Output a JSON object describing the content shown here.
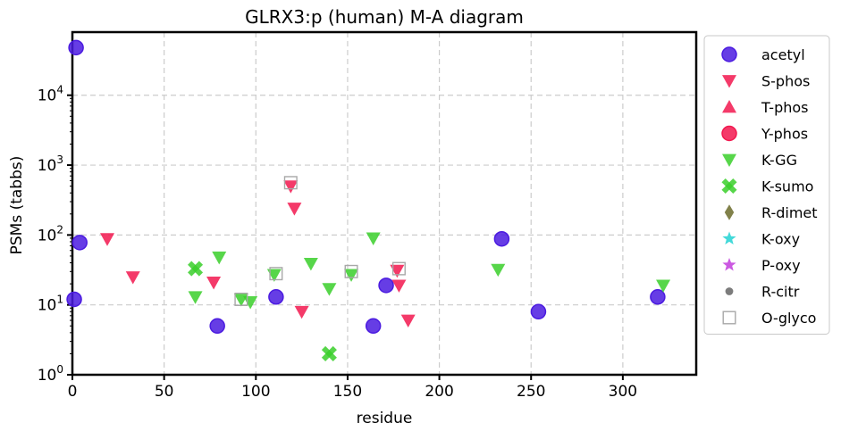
{
  "chart_data": {
    "type": "scatter",
    "title": "GLRX3:p (human) M-A diagram",
    "xlabel": "residue",
    "ylabel": "PSMs (tabbs)",
    "xlim": [
      0,
      340
    ],
    "ylim": [
      1,
      80000
    ],
    "yscale": "log",
    "x_ticks": [
      0,
      50,
      100,
      150,
      200,
      250,
      300
    ],
    "y_ticks": [
      1,
      10,
      100,
      1000,
      10000
    ],
    "y_tick_labels": [
      "10^0",
      "10^1",
      "10^2",
      "10^3",
      "10^4"
    ],
    "grid": true,
    "legend_position": "outside-right",
    "series": [
      {
        "name": "acetyl",
        "marker": "circle",
        "color": "#4b1be0",
        "points": [
          [
            2,
            48000
          ],
          [
            1,
            12
          ],
          [
            4,
            78
          ],
          [
            79,
            5
          ],
          [
            111,
            13
          ],
          [
            171,
            19
          ],
          [
            164,
            5
          ],
          [
            234,
            88
          ],
          [
            254,
            8
          ],
          [
            319,
            13
          ]
        ]
      },
      {
        "name": "S-phos",
        "marker": "triangle-down",
        "color": "#f2184f",
        "points": [
          [
            19,
            88
          ],
          [
            33,
            25
          ],
          [
            77,
            21
          ],
          [
            119,
            500
          ],
          [
            121,
            240
          ],
          [
            125,
            8
          ],
          [
            177,
            31
          ],
          [
            178,
            19
          ],
          [
            183,
            6
          ]
        ]
      },
      {
        "name": "T-phos",
        "marker": "triangle-up",
        "color": "#f2184f",
        "points": []
      },
      {
        "name": "Y-phos",
        "marker": "circle",
        "color": "#f2184f",
        "points": []
      },
      {
        "name": "K-GG",
        "marker": "triangle-down",
        "color": "#3acf2a",
        "points": [
          [
            67,
            13
          ],
          [
            80,
            48
          ],
          [
            92,
            12
          ],
          [
            97,
            11
          ],
          [
            110,
            27
          ],
          [
            130,
            39
          ],
          [
            140,
            17
          ],
          [
            152,
            27
          ],
          [
            164,
            90
          ],
          [
            232,
            32
          ],
          [
            322,
            19
          ]
        ]
      },
      {
        "name": "K-sumo",
        "marker": "x-cross",
        "color": "#3acf2a",
        "points": [
          [
            67,
            33
          ],
          [
            140,
            2
          ]
        ]
      },
      {
        "name": "R-dimet",
        "marker": "diamond",
        "color": "#6b6b2a",
        "points": []
      },
      {
        "name": "K-oxy",
        "marker": "star",
        "color": "#22d2d2",
        "points": []
      },
      {
        "name": "P-oxy",
        "marker": "star",
        "color": "#c23cdc",
        "points": []
      },
      {
        "name": "R-citr",
        "marker": "small-circle",
        "color": "#6e6e6e",
        "points": []
      },
      {
        "name": "O-glyco",
        "marker": "open-square",
        "color": "#a8a8a8",
        "points": [
          [
            92,
            12
          ],
          [
            111,
            28
          ],
          [
            119,
            560
          ],
          [
            152,
            30
          ],
          [
            178,
            33
          ]
        ]
      }
    ]
  }
}
